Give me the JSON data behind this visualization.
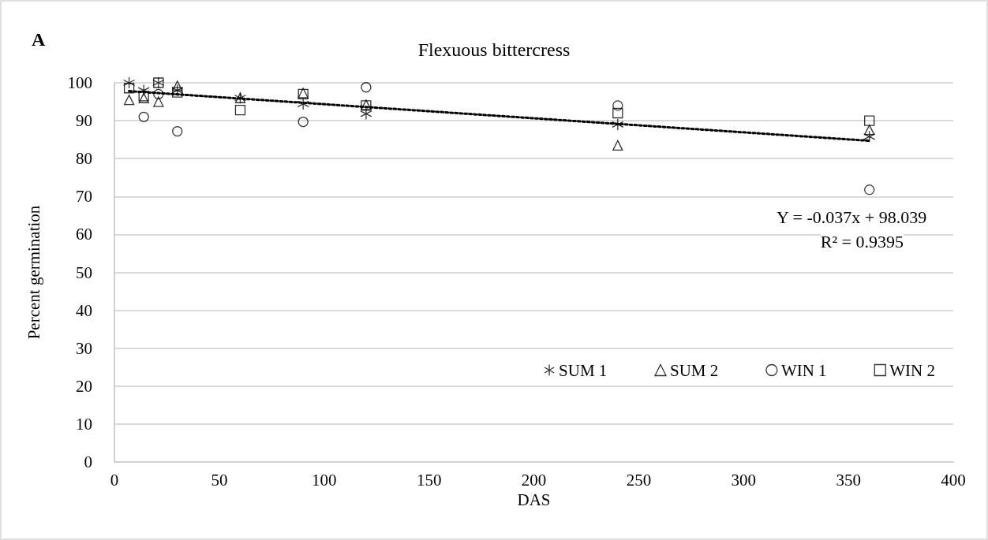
{
  "chart_data": {
    "type": "scatter",
    "title": "Flexuous bittercress",
    "xlabel": "DAS",
    "ylabel": "Percent germination",
    "annotations": [
      "A",
      "Y = -0.037x + 98.039",
      "R² = 0.9395"
    ],
    "x": [
      7,
      14,
      21,
      30,
      60,
      90,
      120,
      240,
      360
    ],
    "series": [
      {
        "name": "SUM 1",
        "color": "#000000",
        "marker": "cross",
        "values": [
          100,
          98,
          100,
          98,
          96,
          94.4,
          91.8,
          89,
          85.8
        ]
      },
      {
        "name": "SUM 2",
        "color": "#000000",
        "marker": "triangle",
        "values": [
          95.5,
          96,
          95,
          99.2,
          96,
          97.3,
          94.2,
          83.5,
          87.6
        ]
      },
      {
        "name": "WIN 1",
        "color": "#000000",
        "marker": "circle",
        "values": [
          null,
          91,
          97,
          87.2,
          null,
          89.7,
          98.8,
          94,
          71.8
        ]
      },
      {
        "name": "WIN 2",
        "color": "#000000",
        "marker": "square",
        "values": [
          98.6,
          96.5,
          100,
          97.5,
          92.8,
          97,
          94,
          92,
          90
        ]
      },
      {
        "type": "line",
        "color": "#000000",
        "line_style": "dotted",
        "marker": "none",
        "x": [
          7,
          360
        ],
        "values": [
          97.8,
          84.7
        ]
      }
    ],
    "xlim": [
      0,
      400
    ],
    "xticks": [
      0,
      50,
      100,
      150,
      200,
      250,
      300,
      350,
      400
    ],
    "ylim": [
      0,
      100
    ],
    "yticks": [
      0,
      10,
      20,
      30,
      40,
      50,
      60,
      70,
      80,
      90,
      100
    ],
    "grid": "y",
    "legend": "bottom right"
  }
}
